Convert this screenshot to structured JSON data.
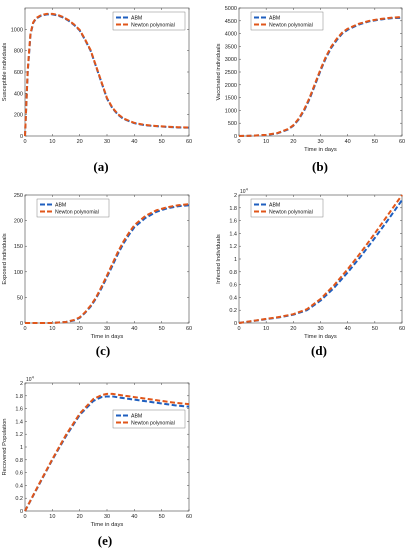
{
  "colors": {
    "abm": "#1f5fbf",
    "newton": "#e0561a",
    "axis": "#444444"
  },
  "chart_data": [
    {
      "id": "a",
      "label": "(a)",
      "type": "line",
      "xlabel": "",
      "ylabel": "Susceptible individuals",
      "xlim": [
        0,
        60
      ],
      "ylim": [
        0,
        1200
      ],
      "xticks": [
        "0",
        "10",
        "20",
        "30",
        "40",
        "50",
        "60"
      ],
      "yticks": [
        "0",
        "200",
        "400",
        "600",
        "800",
        "1000"
      ],
      "exponent": "",
      "legend_position": "top-right",
      "series": [
        {
          "name": "ABM",
          "x": [
            0,
            0.5,
            1,
            2,
            3,
            4,
            6,
            8,
            10,
            12,
            14,
            16,
            18,
            20,
            22,
            24,
            26,
            28,
            30,
            32,
            34,
            36,
            38,
            40,
            44,
            48,
            52,
            56,
            60
          ],
          "y": [
            0,
            300,
            600,
            950,
            1060,
            1100,
            1130,
            1140,
            1140,
            1130,
            1110,
            1080,
            1040,
            990,
            900,
            800,
            650,
            500,
            350,
            260,
            200,
            160,
            140,
            120,
            100,
            92,
            85,
            80,
            78
          ]
        },
        {
          "name": "Newton polynomial",
          "x": [
            0,
            0.5,
            1,
            2,
            3,
            4,
            6,
            8,
            10,
            12,
            14,
            16,
            18,
            20,
            22,
            24,
            26,
            28,
            30,
            32,
            34,
            36,
            38,
            40,
            44,
            48,
            52,
            56,
            60
          ],
          "y": [
            0,
            310,
            620,
            960,
            1065,
            1105,
            1135,
            1145,
            1145,
            1135,
            1115,
            1085,
            1045,
            995,
            905,
            805,
            655,
            505,
            355,
            265,
            205,
            165,
            143,
            123,
            103,
            94,
            87,
            82,
            80
          ]
        }
      ]
    },
    {
      "id": "b",
      "label": "(b)",
      "type": "line",
      "xlabel": "Time in days",
      "ylabel": "Vaccinated individuals",
      "xlim": [
        0,
        60
      ],
      "ylim": [
        0,
        5000
      ],
      "xticks": [
        "0",
        "10",
        "20",
        "30",
        "40",
        "50",
        "60"
      ],
      "yticks": [
        "0",
        "500",
        "1000",
        "1500",
        "2000",
        "2500",
        "3000",
        "3500",
        "4000",
        "4500",
        "5000"
      ],
      "exponent": "",
      "legend_position": "top-left",
      "series": [
        {
          "name": "ABM",
          "x": [
            0,
            5,
            10,
            14,
            18,
            20,
            22,
            24,
            26,
            28,
            30,
            32,
            34,
            36,
            38,
            40,
            44,
            48,
            52,
            56,
            60
          ],
          "y": [
            0,
            10,
            40,
            100,
            250,
            400,
            650,
            1000,
            1450,
            2000,
            2550,
            3050,
            3450,
            3750,
            4000,
            4150,
            4350,
            4480,
            4550,
            4600,
            4620
          ]
        },
        {
          "name": "Newton polynomial",
          "x": [
            0,
            5,
            10,
            14,
            18,
            20,
            22,
            24,
            26,
            28,
            30,
            32,
            34,
            36,
            38,
            40,
            44,
            48,
            52,
            56,
            60
          ],
          "y": [
            0,
            12,
            45,
            110,
            270,
            420,
            680,
            1040,
            1500,
            2050,
            2600,
            3100,
            3500,
            3800,
            4040,
            4190,
            4380,
            4500,
            4570,
            4620,
            4650
          ]
        }
      ]
    },
    {
      "id": "c",
      "label": "(c)",
      "type": "line",
      "xlabel": "Time in days",
      "ylabel": "Exposed individuals",
      "xlim": [
        0,
        60
      ],
      "ylim": [
        0,
        250
      ],
      "xticks": [
        "0",
        "10",
        "20",
        "30",
        "40",
        "50",
        "60"
      ],
      "yticks": [
        "0",
        "50",
        "100",
        "150",
        "200",
        "250"
      ],
      "exponent": "",
      "legend_position": "top-left",
      "series": [
        {
          "name": "ABM",
          "x": [
            0,
            5,
            10,
            15,
            18,
            20,
            22,
            24,
            26,
            28,
            30,
            32,
            34,
            36,
            38,
            40,
            44,
            48,
            52,
            56,
            60
          ],
          "y": [
            0,
            0,
            0,
            2,
            5,
            10,
            20,
            32,
            48,
            68,
            90,
            112,
            135,
            155,
            172,
            187,
            205,
            217,
            224,
            228,
            230
          ]
        },
        {
          "name": "Newton polynomial",
          "x": [
            0,
            5,
            10,
            15,
            18,
            20,
            22,
            24,
            26,
            28,
            30,
            32,
            34,
            36,
            38,
            40,
            44,
            48,
            52,
            56,
            60
          ],
          "y": [
            0,
            0,
            0,
            2,
            6,
            11,
            21,
            34,
            50,
            71,
            93,
            116,
            139,
            159,
            176,
            191,
            209,
            220,
            226,
            230,
            232
          ]
        }
      ]
    },
    {
      "id": "d",
      "label": "(d)",
      "type": "line",
      "xlabel": "Time in days",
      "ylabel": "Infected Individuals",
      "xlim": [
        0,
        60
      ],
      "ylim": [
        0,
        20000
      ],
      "xticks": [
        "0",
        "10",
        "20",
        "30",
        "40",
        "50",
        "60"
      ],
      "yticks": [
        "0",
        "0.2",
        "0.4",
        "0.6",
        "0.8",
        "1",
        "1.2",
        "1.4",
        "1.6",
        "1.8",
        "2"
      ],
      "exponent": "10",
      "exponent_power": "4",
      "legend_position": "top-left",
      "series": [
        {
          "name": "ABM",
          "x": [
            0,
            5,
            10,
            15,
            20,
            25,
            30,
            35,
            40,
            45,
            50,
            55,
            60
          ],
          "y": [
            0,
            300,
            600,
            900,
            1300,
            2000,
            3500,
            5500,
            7900,
            10500,
            13300,
            16200,
            19200
          ]
        },
        {
          "name": "Newton polynomial",
          "x": [
            0,
            5,
            10,
            15,
            20,
            25,
            30,
            35,
            40,
            45,
            50,
            55,
            60
          ],
          "y": [
            0,
            320,
            640,
            950,
            1380,
            2150,
            3750,
            5900,
            8400,
            11100,
            14000,
            17000,
            20000
          ]
        }
      ]
    },
    {
      "id": "e",
      "label": "(e)",
      "type": "line",
      "xlabel": "Time in days",
      "ylabel": "Recovered Population",
      "xlim": [
        0,
        60
      ],
      "ylim": [
        0,
        20000
      ],
      "xticks": [
        "0",
        "10",
        "20",
        "30",
        "40",
        "50",
        "60"
      ],
      "yticks": [
        "0",
        "0.2",
        "0.4",
        "0.6",
        "0.8",
        "1",
        "1.2",
        "1.4",
        "1.6",
        "1.8",
        "2"
      ],
      "exponent": "10",
      "exponent_power": "4",
      "legend_position": "right",
      "series": [
        {
          "name": "ABM",
          "x": [
            0,
            5,
            10,
            15,
            20,
            25,
            28,
            30,
            32,
            35,
            40,
            45,
            50,
            55,
            60
          ],
          "y": [
            0,
            4000,
            8000,
            11700,
            15000,
            17200,
            17800,
            17900,
            17900,
            17700,
            17400,
            17100,
            16800,
            16500,
            16300
          ]
        },
        {
          "name": "Newton polynomial",
          "x": [
            0,
            5,
            10,
            15,
            20,
            25,
            28,
            30,
            32,
            35,
            40,
            45,
            50,
            55,
            60
          ],
          "y": [
            0,
            4100,
            8100,
            11900,
            15200,
            17500,
            18100,
            18300,
            18300,
            18100,
            17800,
            17500,
            17200,
            16900,
            16700
          ]
        }
      ]
    }
  ]
}
